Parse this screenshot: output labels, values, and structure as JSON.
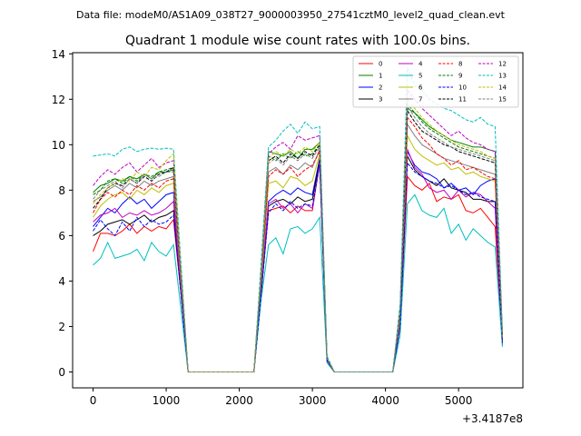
{
  "header": {
    "datafile": "Data file: modeM0/AS1A09_038T27_9000003950_27541cztM0_level2_quad_clean.evt"
  },
  "chart_data": {
    "type": "line",
    "title": "Quadrant 1 module wise count rates with 100.0s bins.",
    "xlabel": "",
    "ylabel": "",
    "x_offset_label": "+3.4187e8",
    "xlim": [
      -280,
      5880
    ],
    "ylim": [
      -0.7,
      14.05
    ],
    "xticks": [
      0,
      1000,
      2000,
      3000,
      4000,
      5000
    ],
    "xtick_labels": [
      "0",
      "1000",
      "2000",
      "3000",
      "4000",
      "5000"
    ],
    "yticks": [
      0,
      2,
      4,
      6,
      8,
      10,
      12,
      14
    ],
    "ytick_labels": [
      "0",
      "2",
      "4",
      "6",
      "8",
      "10",
      "12",
      "14"
    ],
    "grid": false,
    "legend_position": "top-right",
    "x": [
      0,
      100,
      200,
      300,
      400,
      500,
      600,
      700,
      800,
      900,
      1000,
      1100,
      1200,
      1300,
      1400,
      1500,
      1600,
      1700,
      1800,
      1900,
      2000,
      2100,
      2200,
      2300,
      2400,
      2500,
      2600,
      2700,
      2800,
      2900,
      3000,
      3100,
      3200,
      3300,
      3400,
      3500,
      3600,
      3700,
      3800,
      3900,
      4000,
      4100,
      4200,
      4300,
      4400,
      4500,
      4600,
      4700,
      4800,
      4900,
      5000,
      5100,
      5200,
      5300,
      5400,
      5500,
      5600
    ],
    "series": [
      {
        "name": "0",
        "color": "#ff0000",
        "dash": "solid",
        "values": [
          5.3,
          6.1,
          6.1,
          6.0,
          6.2,
          6.5,
          6.1,
          6.4,
          6.2,
          6.4,
          6.3,
          6.7,
          3.5,
          0,
          0,
          0,
          0,
          0,
          0,
          0,
          0,
          0,
          0,
          3.5,
          7.1,
          7.2,
          7.3,
          7.0,
          7.3,
          7.1,
          7.1,
          9.2,
          0.5,
          0,
          0,
          0,
          0,
          0,
          0,
          0,
          0,
          0,
          2.0,
          8.6,
          8.2,
          8.0,
          8.3,
          7.5,
          7.7,
          7.6,
          7.8,
          7.1,
          7.0,
          7.2,
          6.8,
          6.4,
          1.2
        ]
      },
      {
        "name": "1",
        "color": "#008000",
        "dash": "solid",
        "values": [
          7.9,
          8.2,
          8.3,
          8.5,
          8.4,
          8.6,
          8.5,
          8.7,
          8.5,
          8.8,
          8.8,
          8.9,
          4.3,
          0,
          0,
          0,
          0,
          0,
          0,
          0,
          0,
          0,
          0,
          4.4,
          9.7,
          9.6,
          9.5,
          9.7,
          9.4,
          9.8,
          9.8,
          10.1,
          0.6,
          0,
          0,
          0,
          0,
          0,
          0,
          0,
          0,
          0,
          2.7,
          11.6,
          11.4,
          11.1,
          10.8,
          10.6,
          10.4,
          10.2,
          10.1,
          10.0,
          9.9,
          9.9,
          9.8,
          9.7,
          1.6
        ]
      },
      {
        "name": "2",
        "color": "#0000ff",
        "dash": "solid",
        "values": [
          6.4,
          6.8,
          7.2,
          7.0,
          7.4,
          7.7,
          7.4,
          7.6,
          7.2,
          7.5,
          7.8,
          7.9,
          3.9,
          0,
          0,
          0,
          0,
          0,
          0,
          0,
          0,
          0,
          0,
          3.8,
          7.5,
          7.8,
          8.0,
          7.8,
          8.1,
          7.9,
          7.8,
          9.4,
          0.5,
          0,
          0,
          0,
          0,
          0,
          0,
          0,
          0,
          0,
          2.2,
          9.7,
          9.1,
          8.8,
          8.7,
          8.5,
          8.1,
          8.3,
          8.0,
          8.1,
          7.8,
          8.2,
          8.4,
          8.5,
          1.3
        ]
      },
      {
        "name": "3",
        "color": "#000000",
        "dash": "solid",
        "values": [
          6.0,
          6.2,
          6.5,
          6.6,
          6.7,
          6.5,
          6.7,
          6.9,
          6.6,
          6.8,
          6.9,
          7.1,
          3.6,
          0,
          0,
          0,
          0,
          0,
          0,
          0,
          0,
          0,
          0,
          3.4,
          7.3,
          7.5,
          7.6,
          7.4,
          7.7,
          7.5,
          7.6,
          9.3,
          0.5,
          0,
          0,
          0,
          0,
          0,
          0,
          0,
          0,
          0,
          2.0,
          9.5,
          8.9,
          8.6,
          8.4,
          8.2,
          8.5,
          8.1,
          8.0,
          7.9,
          7.6,
          7.6,
          7.5,
          7.5,
          1.3
        ]
      },
      {
        "name": "4",
        "color": "#bf00bf",
        "dash": "solid",
        "values": [
          6.6,
          6.9,
          7.0,
          7.2,
          6.8,
          7.0,
          6.9,
          7.1,
          6.9,
          7.0,
          7.2,
          7.5,
          3.7,
          0,
          0,
          0,
          0,
          0,
          0,
          0,
          0,
          0,
          0,
          3.6,
          7.4,
          7.6,
          7.2,
          7.4,
          7.0,
          7.4,
          7.2,
          9.2,
          0.5,
          0,
          0,
          0,
          0,
          0,
          0,
          0,
          0,
          0,
          2.1,
          9.8,
          9.0,
          8.7,
          8.1,
          7.9,
          8.0,
          7.6,
          8.0,
          7.7,
          7.9,
          7.8,
          7.5,
          7.2,
          1.2
        ]
      },
      {
        "name": "5",
        "color": "#00bfbf",
        "dash": "solid",
        "values": [
          4.7,
          5.0,
          5.7,
          5.0,
          5.1,
          5.2,
          5.4,
          4.9,
          5.7,
          5.3,
          5.1,
          5.6,
          2.8,
          0,
          0,
          0,
          0,
          0,
          0,
          0,
          0,
          0,
          0,
          3.2,
          5.6,
          5.9,
          5.2,
          6.3,
          6.4,
          6.1,
          6.3,
          6.8,
          0.4,
          0,
          0,
          0,
          0,
          0,
          0,
          0,
          0,
          0,
          1.6,
          7.4,
          7.8,
          7.1,
          6.9,
          6.8,
          7.2,
          6.1,
          6.5,
          5.8,
          6.3,
          6.0,
          5.7,
          5.5,
          1.1
        ]
      },
      {
        "name": "6",
        "color": "#bfbf00",
        "dash": "solid",
        "values": [
          6.8,
          7.3,
          7.6,
          7.8,
          7.9,
          7.6,
          8.0,
          7.8,
          8.1,
          7.9,
          8.2,
          8.3,
          4.0,
          0,
          0,
          0,
          0,
          0,
          0,
          0,
          0,
          0,
          0,
          3.9,
          8.3,
          8.4,
          8.1,
          8.6,
          8.5,
          8.2,
          8.4,
          9.6,
          0.5,
          0,
          0,
          0,
          0,
          0,
          0,
          0,
          0,
          0,
          2.3,
          10.4,
          9.8,
          9.5,
          9.3,
          9.1,
          9.2,
          8.9,
          9.0,
          8.7,
          8.8,
          8.6,
          8.5,
          8.4,
          1.4
        ]
      },
      {
        "name": "7",
        "color": "#808080",
        "dash": "solid",
        "values": [
          7.5,
          7.7,
          8.0,
          8.2,
          8.0,
          8.3,
          8.1,
          8.4,
          8.2,
          8.4,
          8.5,
          8.6,
          4.1,
          0,
          0,
          0,
          0,
          0,
          0,
          0,
          0,
          0,
          0,
          4.0,
          8.8,
          9.0,
          8.7,
          9.1,
          8.9,
          9.2,
          9.0,
          9.8,
          0.5,
          0,
          0,
          0,
          0,
          0,
          0,
          0,
          0,
          0,
          2.5,
          10.9,
          10.4,
          10.0,
          9.8,
          9.6,
          9.4,
          9.3,
          9.2,
          9.1,
          9.0,
          8.9,
          8.8,
          8.7,
          1.5
        ]
      },
      {
        "name": "8",
        "color": "#ff0000",
        "dash": "dashed",
        "values": [
          7.0,
          7.6,
          7.9,
          7.7,
          8.0,
          7.8,
          8.2,
          8.0,
          8.3,
          8.1,
          8.4,
          8.5,
          4.2,
          0,
          0,
          0,
          0,
          0,
          0,
          0,
          0,
          0,
          0,
          4.1,
          8.6,
          8.9,
          8.7,
          9.0,
          8.6,
          8.9,
          9.1,
          9.7,
          0.5,
          0,
          0,
          0,
          0,
          0,
          0,
          0,
          0,
          0,
          2.6,
          11.2,
          10.8,
          10.3,
          10.0,
          9.6,
          9.4,
          9.1,
          9.3,
          8.9,
          9.0,
          8.8,
          8.6,
          8.5,
          1.4
        ]
      },
      {
        "name": "9",
        "color": "#008000",
        "dash": "dashed",
        "values": [
          7.8,
          8.0,
          8.4,
          8.5,
          8.3,
          8.6,
          8.4,
          8.7,
          8.6,
          8.8,
          8.9,
          9.0,
          4.4,
          0,
          0,
          0,
          0,
          0,
          0,
          0,
          0,
          0,
          0,
          4.3,
          9.5,
          9.3,
          9.6,
          9.4,
          9.7,
          9.5,
          9.6,
          10.0,
          0.6,
          0,
          0,
          0,
          0,
          0,
          0,
          0,
          0,
          0,
          2.7,
          11.8,
          11.4,
          11.0,
          10.7,
          10.5,
          10.3,
          10.1,
          9.9,
          9.8,
          9.7,
          9.6,
          9.5,
          9.4,
          1.6
        ]
      },
      {
        "name": "10",
        "color": "#0000ff",
        "dash": "dashed",
        "values": [
          6.2,
          6.7,
          6.3,
          6.0,
          6.6,
          6.2,
          6.8,
          6.4,
          6.7,
          6.5,
          6.6,
          6.9,
          3.5,
          0,
          0,
          0,
          0,
          0,
          0,
          0,
          0,
          0,
          0,
          3.5,
          7.0,
          7.4,
          7.1,
          7.5,
          7.2,
          7.4,
          7.3,
          9.1,
          0.5,
          0,
          0,
          0,
          0,
          0,
          0,
          0,
          0,
          0,
          2.0,
          9.2,
          8.8,
          8.6,
          8.4,
          8.3,
          8.1,
          8.2,
          8.0,
          7.8,
          7.9,
          7.7,
          7.6,
          7.5,
          1.3
        ]
      },
      {
        "name": "11",
        "color": "#000000",
        "dash": "dashed",
        "values": [
          7.2,
          7.6,
          8.1,
          8.3,
          8.2,
          8.5,
          8.3,
          8.6,
          8.4,
          8.7,
          8.8,
          9.0,
          4.3,
          0,
          0,
          0,
          0,
          0,
          0,
          0,
          0,
          0,
          0,
          4.2,
          9.3,
          9.5,
          9.2,
          9.6,
          9.4,
          9.7,
          9.5,
          10.0,
          0.6,
          0,
          0,
          0,
          0,
          0,
          0,
          0,
          0,
          0,
          2.6,
          11.5,
          11.0,
          10.6,
          10.4,
          10.2,
          10.0,
          9.9,
          9.7,
          9.6,
          9.5,
          9.4,
          9.3,
          9.2,
          1.5
        ]
      },
      {
        "name": "12",
        "color": "#bf00bf",
        "dash": "dashed",
        "values": [
          8.2,
          8.6,
          8.9,
          8.7,
          9.0,
          9.2,
          8.8,
          9.1,
          9.4,
          9.0,
          9.2,
          9.3,
          4.6,
          0,
          0,
          0,
          0,
          0,
          0,
          0,
          0,
          0,
          0,
          4.5,
          9.6,
          9.9,
          10.1,
          9.8,
          10.4,
          10.2,
          10.3,
          10.4,
          0.6,
          0,
          0,
          0,
          0,
          0,
          0,
          0,
          0,
          0,
          2.8,
          12.4,
          12.0,
          11.6,
          11.3,
          11.0,
          10.7,
          10.4,
          10.6,
          10.3,
          10.1,
          10.0,
          9.8,
          9.7,
          1.7
        ]
      },
      {
        "name": "13",
        "color": "#00bfbf",
        "dash": "dashed",
        "values": [
          9.5,
          9.55,
          9.6,
          9.5,
          9.8,
          9.9,
          9.7,
          9.8,
          9.85,
          9.8,
          9.85,
          9.8,
          4.9,
          0,
          0,
          0,
          0,
          0,
          0,
          0,
          0,
          0,
          0,
          4.9,
          9.9,
          10.2,
          10.6,
          10.9,
          10.5,
          11.0,
          10.7,
          10.8,
          0.7,
          0,
          0,
          0,
          0,
          0,
          0,
          0,
          0,
          0,
          3.0,
          13.4,
          12.6,
          12.4,
          12.0,
          11.8,
          11.6,
          11.5,
          11.3,
          11.1,
          11.0,
          11.2,
          10.9,
          10.8,
          1.8
        ]
      },
      {
        "name": "14",
        "color": "#bfbf00",
        "dash": "dashed",
        "values": [
          7.4,
          7.8,
          8.1,
          8.3,
          8.5,
          8.4,
          8.8,
          8.6,
          9.0,
          8.9,
          9.3,
          9.6,
          4.5,
          0,
          0,
          0,
          0,
          0,
          0,
          0,
          0,
          0,
          0,
          4.4,
          9.4,
          9.7,
          9.5,
          9.8,
          9.6,
          9.9,
          9.7,
          10.1,
          0.6,
          0,
          0,
          0,
          0,
          0,
          0,
          0,
          0,
          0,
          2.7,
          12.0,
          11.6,
          11.2,
          10.9,
          10.6,
          10.4,
          10.2,
          10.0,
          9.9,
          9.8,
          9.7,
          9.5,
          9.4,
          1.6
        ]
      },
      {
        "name": "15",
        "color": "#808080",
        "dash": "dashed",
        "values": [
          7.6,
          8.0,
          8.2,
          8.4,
          8.1,
          8.5,
          8.3,
          8.7,
          8.5,
          8.6,
          8.8,
          8.8,
          4.3,
          0,
          0,
          0,
          0,
          0,
          0,
          0,
          0,
          0,
          0,
          4.2,
          9.2,
          9.4,
          9.1,
          9.5,
          9.3,
          9.6,
          9.4,
          9.9,
          0.6,
          0,
          0,
          0,
          0,
          0,
          0,
          0,
          0,
          0,
          2.6,
          11.7,
          11.2,
          10.8,
          10.5,
          10.3,
          10.1,
          9.9,
          9.8,
          9.7,
          9.6,
          9.5,
          9.4,
          9.3,
          1.5
        ]
      }
    ]
  }
}
